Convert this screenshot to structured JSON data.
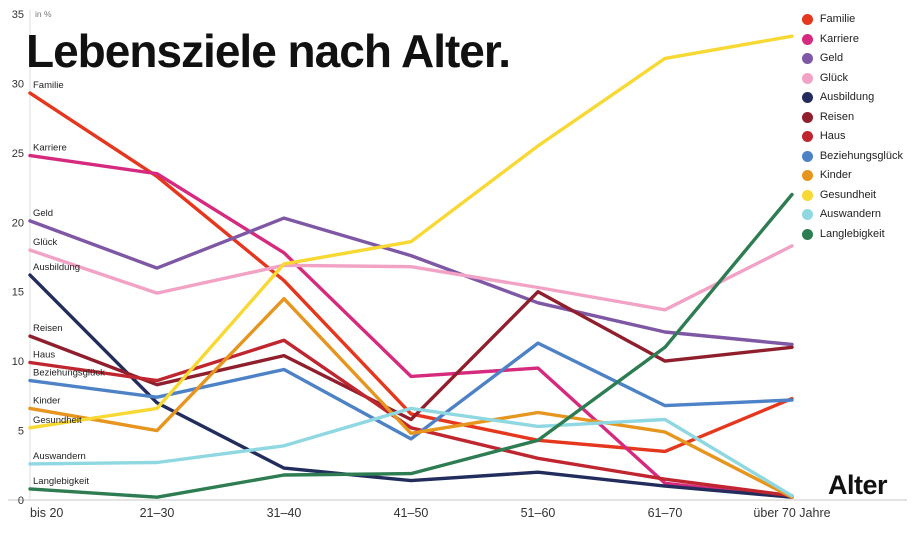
{
  "title": "Lebensziele nach Alter.",
  "x_axis_title": "Alter",
  "chart_data": {
    "type": "line",
    "title": "Lebensziele nach Alter.",
    "xlabel": "Alter",
    "ylabel": "in %",
    "ylim": [
      0,
      35
    ],
    "yticks": [
      0,
      5,
      10,
      15,
      20,
      25,
      30,
      35
    ],
    "grid": false,
    "legend_position": "top-right",
    "categories": [
      "bis 20",
      "21–30",
      "31–40",
      "41–50",
      "51–60",
      "61–70",
      "über 70 Jahre"
    ],
    "series": [
      {
        "name": "Familie",
        "color": "#e5371e",
        "values": [
          29.3,
          23.3,
          15.8,
          6.2,
          4.3,
          3.5,
          7.3
        ]
      },
      {
        "name": "Karriere",
        "color": "#d62a7e",
        "values": [
          24.8,
          23.5,
          17.8,
          8.9,
          9.5,
          1.2,
          0.2
        ]
      },
      {
        "name": "Geld",
        "color": "#7e57a5",
        "values": [
          20.1,
          16.7,
          20.3,
          17.6,
          14.2,
          12.1,
          11.2
        ]
      },
      {
        "name": "Glück",
        "color": "#f2a3c5",
        "values": [
          18.0,
          14.9,
          16.9,
          16.8,
          15.3,
          13.7,
          18.3
        ]
      },
      {
        "name": "Ausbildung",
        "color": "#222d5d",
        "values": [
          16.2,
          7.0,
          2.3,
          1.4,
          2.0,
          1.0,
          0.2
        ]
      },
      {
        "name": "Reisen",
        "color": "#8f1f2c",
        "values": [
          11.8,
          8.3,
          10.4,
          5.8,
          15.0,
          10.0,
          11.0
        ]
      },
      {
        "name": "Haus",
        "color": "#c02630",
        "values": [
          9.9,
          8.6,
          11.5,
          5.2,
          3.0,
          1.5,
          0.3
        ]
      },
      {
        "name": "Beziehungsglück",
        "color": "#4d82c6",
        "values": [
          8.6,
          7.4,
          9.4,
          4.4,
          11.3,
          6.8,
          7.2
        ]
      },
      {
        "name": "Kinder",
        "color": "#e6951f",
        "values": [
          6.6,
          5.0,
          14.5,
          4.8,
          6.3,
          4.9,
          0.2
        ]
      },
      {
        "name": "Gesundheit",
        "color": "#f8d832",
        "values": [
          5.2,
          6.6,
          17.0,
          18.6,
          25.5,
          31.8,
          33.4
        ]
      },
      {
        "name": "Auswandern",
        "color": "#8fd8e2",
        "values": [
          2.6,
          2.7,
          3.9,
          6.6,
          5.3,
          5.8,
          0.3
        ]
      },
      {
        "name": "Langlebigkeit",
        "color": "#2e7d52",
        "values": [
          0.8,
          0.2,
          1.8,
          1.9,
          4.3,
          11.0,
          22.0
        ]
      }
    ]
  }
}
